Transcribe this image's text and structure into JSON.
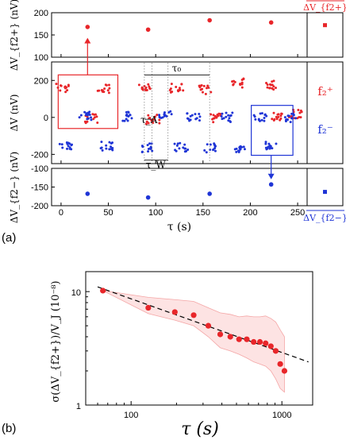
{
  "panel_labels": {
    "a": "(a)",
    "b": "(b)"
  },
  "colors": {
    "red": "#e8262a",
    "blue": "#1f35d6",
    "band": "#f4a6a6",
    "band_fill": "#fde3e3"
  },
  "panel_a": {
    "xlabel": "τ (s)",
    "top_ylabel": "ΔV_{f2+} (nV)",
    "mid_ylabel": "ΔV (nV)",
    "bot_ylabel": "ΔV_{f2−} (nV)",
    "legend_f_plus": "f₂⁺",
    "legend_f_minus": "f₂⁻",
    "avg_plus_label": "ΔV_{f2+}",
    "avg_minus_label": "ΔV_{f2−}",
    "annotations": {
      "tau0": "τ₀",
      "tauA": "τ_A",
      "tauW": "τ_W"
    }
  },
  "panel_b": {
    "xlabel": "τ (s)",
    "ylabel": "σ(ΔV_{f2+})/V_J (10⁻⁸)"
  },
  "chart_data": [
    {
      "type": "scatter",
      "name": "panel-a-top",
      "x": [
        28,
        92,
        157,
        222
      ],
      "y": [
        168,
        162,
        183,
        178
      ],
      "xlim": [
        -10,
        260
      ],
      "ylim": [
        100,
        200
      ],
      "yticks": [
        100,
        150,
        200
      ],
      "avg": {
        "value": 172,
        "err": 6
      }
    },
    {
      "type": "scatter",
      "name": "panel-a-middle",
      "xlim": [
        -10,
        260
      ],
      "ylim": [
        -250,
        300
      ],
      "yticks": [
        -200,
        0,
        200
      ],
      "f_plus_clusters": [
        {
          "x": 2,
          "y": 160
        },
        {
          "x": 45,
          "y": 155
        },
        {
          "x": 88,
          "y": 160
        },
        {
          "x": 122,
          "y": 160
        },
        {
          "x": 153,
          "y": 150
        },
        {
          "x": 186,
          "y": 185
        },
        {
          "x": 221,
          "y": 175
        },
        {
          "x": 32,
          "y": -5
        },
        {
          "x": 97,
          "y": -10
        },
        {
          "x": 162,
          "y": -5
        },
        {
          "x": 227,
          "y": 5
        },
        {
          "x": 248,
          "y": 20
        }
      ],
      "f_minus_clusters": [
        {
          "x": 5,
          "y": -150
        },
        {
          "x": 48,
          "y": -155
        },
        {
          "x": 92,
          "y": -165
        },
        {
          "x": 127,
          "y": -160
        },
        {
          "x": 158,
          "y": -165
        },
        {
          "x": 188,
          "y": -175
        },
        {
          "x": 222,
          "y": -150
        },
        {
          "x": 25,
          "y": 10
        },
        {
          "x": 68,
          "y": 5
        },
        {
          "x": 110,
          "y": 10
        },
        {
          "x": 140,
          "y": 5
        },
        {
          "x": 175,
          "y": 0
        },
        {
          "x": 210,
          "y": 5
        },
        {
          "x": 243,
          "y": 0
        }
      ]
    },
    {
      "type": "scatter",
      "name": "panel-a-bottom",
      "x": [
        28,
        92,
        157,
        222
      ],
      "y": [
        -168,
        -178,
        -168,
        -143
      ],
      "xlim": [
        -10,
        260
      ],
      "ylim": [
        -200,
        -100
      ],
      "yticks": [
        -200,
        -150,
        -100
      ],
      "xticks": [
        0,
        50,
        100,
        150,
        200,
        250
      ],
      "avg": {
        "value": -163,
        "err": 5
      }
    },
    {
      "type": "scatter",
      "name": "panel-b",
      "log_x": true,
      "log_y": true,
      "xlim": [
        50,
        1600
      ],
      "ylim": [
        1,
        15
      ],
      "xticks": [
        100,
        1000
      ],
      "yticks": [
        1,
        10
      ],
      "x": [
        65,
        130,
        195,
        260,
        325,
        390,
        455,
        520,
        585,
        650,
        715,
        780,
        845,
        910,
        975,
        1040
      ],
      "y": [
        10.2,
        7.2,
        6.6,
        6.2,
        5.0,
        4.2,
        4.0,
        3.8,
        3.8,
        3.6,
        3.6,
        3.5,
        3.3,
        3.0,
        2.3,
        2.0
      ],
      "band_upper": [
        10.2,
        8.9,
        8.5,
        8.2,
        7.2,
        6.5,
        6.3,
        6.0,
        6.1,
        6.0,
        6.0,
        6.1,
        5.8,
        5.4,
        4.6,
        4.0
      ],
      "band_lower": [
        10.2,
        6.4,
        5.6,
        5.0,
        4.0,
        3.2,
        3.0,
        2.8,
        2.6,
        2.4,
        2.3,
        2.2,
        2.0,
        1.7,
        1.4,
        1.3
      ],
      "fit_line": {
        "x": [
          60,
          1500
        ],
        "y": [
          11.0,
          2.4
        ]
      }
    }
  ]
}
